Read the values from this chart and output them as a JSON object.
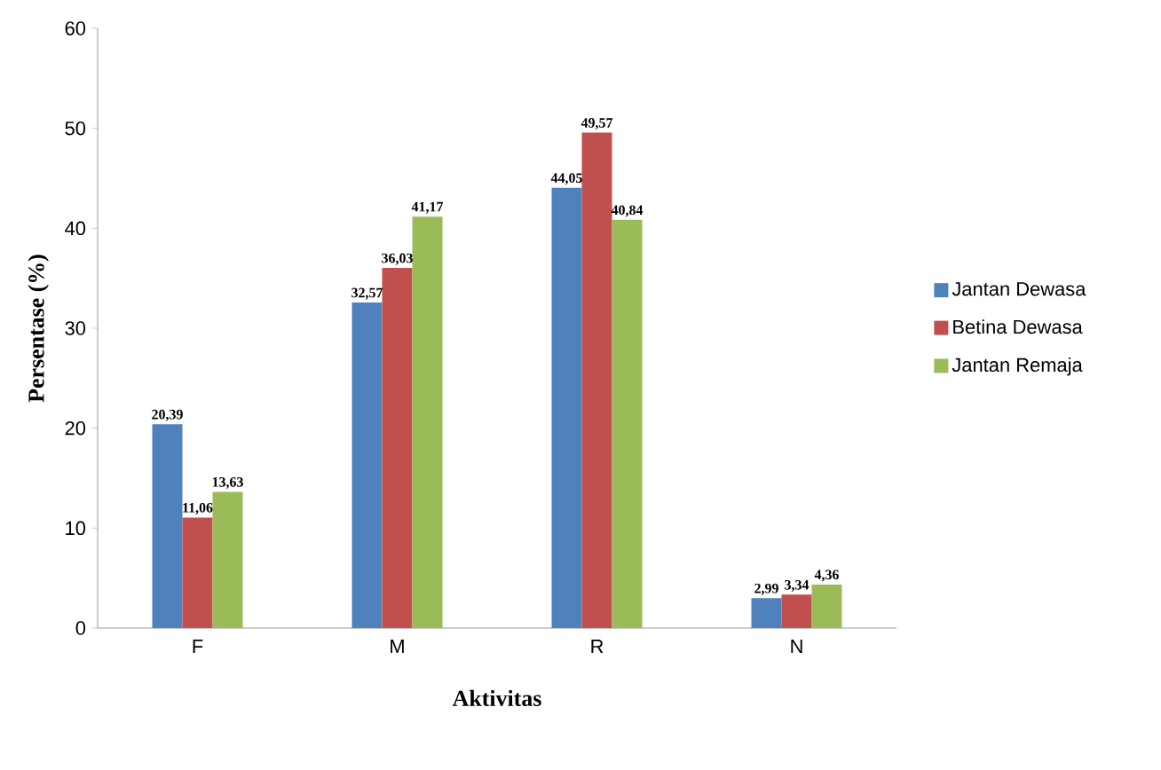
{
  "chart_data": {
    "type": "bar",
    "xlabel": "Aktivitas",
    "ylabel": "Persentase (%)",
    "categories": [
      "F",
      "M",
      "R",
      "N"
    ],
    "series": [
      {
        "name": "Jantan Dewasa",
        "color": "#4f81bd",
        "values": [
          20.39,
          32.57,
          44.05,
          2.99
        ],
        "value_labels": [
          "20,39",
          "32,57",
          "44,05",
          "2,99"
        ]
      },
      {
        "name": "Betina Dewasa",
        "color": "#c0504d",
        "values": [
          11.06,
          36.03,
          49.57,
          3.34
        ],
        "value_labels": [
          "11,06",
          "36,03",
          "49,57",
          "3,34"
        ]
      },
      {
        "name": "Jantan Remaja",
        "color": "#9bbb59",
        "values": [
          13.63,
          41.17,
          40.84,
          4.36
        ],
        "value_labels": [
          "13,63",
          "41,17",
          "40,84",
          "4,36"
        ]
      }
    ],
    "ylim": [
      0,
      60
    ],
    "yticks": [
      0,
      10,
      20,
      30,
      40,
      50,
      60
    ],
    "grid": false,
    "legend": "right"
  }
}
